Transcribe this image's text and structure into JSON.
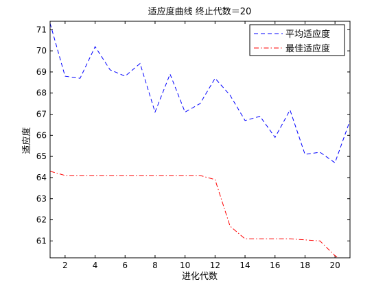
{
  "chart_data": {
    "type": "line",
    "title": "适应度曲线  终止代数＝20",
    "xlabel": "进化代数",
    "ylabel": "适应度",
    "xlim": [
      1,
      21
    ],
    "ylim": [
      60.2,
      71.4
    ],
    "x_ticks": [
      2,
      4,
      6,
      8,
      10,
      12,
      14,
      16,
      18,
      20
    ],
    "y_ticks": [
      61,
      62,
      63,
      64,
      65,
      66,
      67,
      68,
      69,
      70,
      71
    ],
    "grid": false,
    "legend_position": "top-right",
    "x": [
      1,
      2,
      3,
      4,
      5,
      6,
      7,
      8,
      9,
      10,
      11,
      12,
      13,
      14,
      15,
      16,
      17,
      18,
      19,
      20,
      21
    ],
    "series": [
      {
        "name": "平均适应度",
        "color": "#0000ff",
        "dash": "dashed",
        "values": [
          71.3,
          68.8,
          68.7,
          70.2,
          69.1,
          68.8,
          69.4,
          67.1,
          68.9,
          67.1,
          67.5,
          68.7,
          67.9,
          66.7,
          66.9,
          65.9,
          67.2,
          65.1,
          65.2,
          64.7,
          66.7
        ]
      },
      {
        "name": "最佳适应度",
        "color": "#ff0000",
        "dash": "dashdot",
        "values": [
          64.3,
          64.1,
          64.1,
          64.1,
          64.1,
          64.1,
          64.1,
          64.1,
          64.1,
          64.1,
          64.1,
          63.9,
          61.7,
          61.1,
          61.1,
          61.1,
          61.1,
          61.05,
          61.0,
          60.3,
          59.8
        ]
      }
    ]
  }
}
